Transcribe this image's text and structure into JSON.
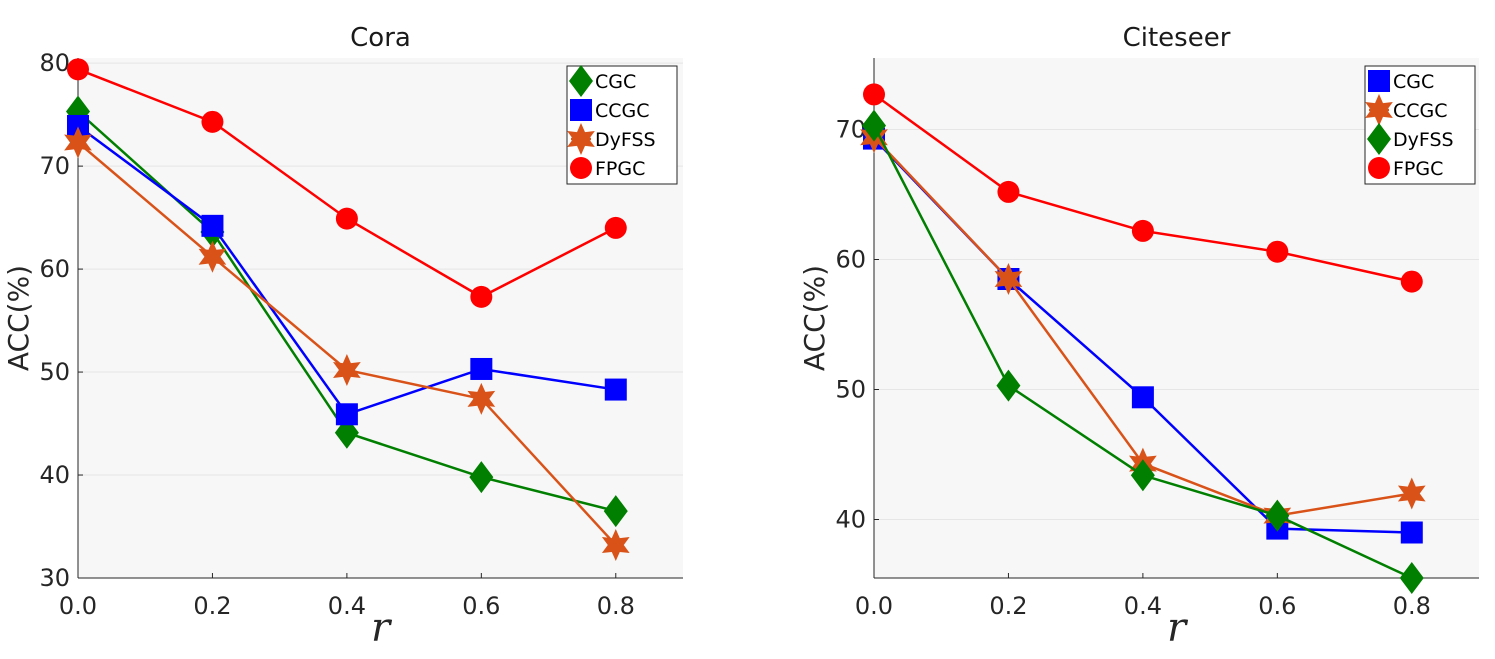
{
  "chart_data": [
    {
      "type": "line",
      "title": "Cora",
      "xlabel": "r",
      "ylabel": "ACC(%)",
      "x": [
        0.0,
        0.2,
        0.4,
        0.6,
        0.8
      ],
      "xticks": [
        "0.0",
        "0.2",
        "0.4",
        "0.6",
        "0.8"
      ],
      "yticks": [
        "30",
        "40",
        "50",
        "60",
        "70",
        "80"
      ],
      "xlim": [
        0,
        0.9
      ],
      "ylim": [
        30,
        80.5
      ],
      "grid": true,
      "legend": "top-right",
      "series": [
        {
          "name": "CGC",
          "color": "#007f00",
          "marker": "diamond",
          "values": [
            75.3,
            63.6,
            44.1,
            39.8,
            36.5
          ]
        },
        {
          "name": "CCGC",
          "color": "#0000ff",
          "marker": "square",
          "values": [
            73.9,
            64.2,
            45.9,
            50.3,
            48.3
          ]
        },
        {
          "name": "DyFSS",
          "color": "#d95319",
          "marker": "hexagram",
          "values": [
            72.3,
            61.2,
            50.2,
            47.4,
            33.2
          ]
        },
        {
          "name": "FPGC",
          "color": "#ff0000",
          "marker": "circle",
          "values": [
            79.4,
            74.3,
            64.9,
            57.3,
            64.0
          ]
        }
      ]
    },
    {
      "type": "line",
      "title": "Citeseer",
      "xlabel": "r",
      "ylabel": "ACC(%)",
      "x": [
        0.0,
        0.2,
        0.4,
        0.6,
        0.8
      ],
      "xticks": [
        "0.0",
        "0.2",
        "0.4",
        "0.6",
        "0.8"
      ],
      "yticks": [
        "40",
        "50",
        "60",
        "70"
      ],
      "xlim": [
        0,
        0.9
      ],
      "ylim": [
        35.5,
        75.5
      ],
      "grid": true,
      "legend": "top-right",
      "series": [
        {
          "name": "CGC",
          "color": "#0000ff",
          "marker": "square",
          "values": [
            69.3,
            58.5,
            49.4,
            39.3,
            39.0
          ]
        },
        {
          "name": "CCGC",
          "color": "#d95319",
          "marker": "hexagram",
          "values": [
            69.4,
            58.5,
            44.3,
            40.3,
            42.0
          ]
        },
        {
          "name": "DyFSS",
          "color": "#007f00",
          "marker": "diamond",
          "values": [
            70.3,
            50.3,
            43.4,
            40.3,
            35.5
          ]
        },
        {
          "name": "FPGC",
          "color": "#ff0000",
          "marker": "circle",
          "values": [
            72.7,
            65.2,
            62.2,
            60.6,
            58.3
          ]
        }
      ]
    }
  ]
}
